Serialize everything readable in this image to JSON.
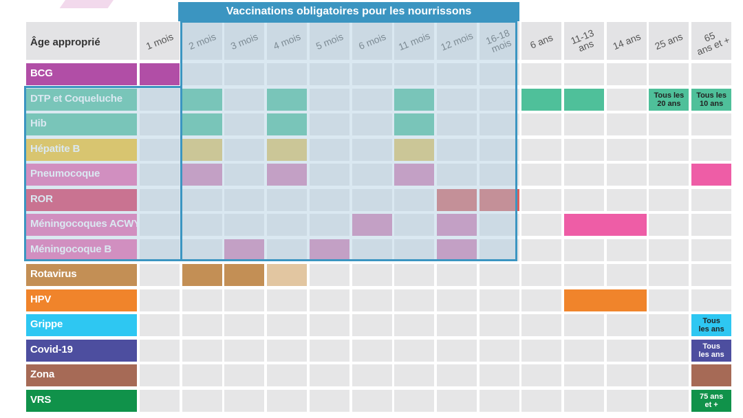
{
  "header_label": "Âge approprié",
  "overlay_title": "Vaccinations obligatoires pour les nourrissons",
  "colors": {
    "teal": "#4fc09a",
    "yellow": "#e3c25c",
    "pink": "#d57db0",
    "red": "#d8605d",
    "hotpink": "#ee5da6",
    "brown": "#c38f55",
    "lightbrown": "#e2c6a1",
    "orange": "#f0842b",
    "zona": "#a66a56",
    "green": "#10924a",
    "purple": "#b14ea6"
  },
  "chart_data": {
    "type": "table",
    "columns": [
      "1 mois",
      "2 mois",
      "3 mois",
      "4 mois",
      "5 mois",
      "6 mois",
      "11 mois",
      "12 mois",
      "16-18 mois",
      "6 ans",
      "11-13 ans",
      "14 ans",
      "25 ans",
      "65 ans et +"
    ],
    "rows": [
      {
        "name": "BCG",
        "color": "#b14ea6",
        "doses": [
          {
            "col": 0,
            "span": 1,
            "color": "#b14ea6",
            "note": ""
          }
        ]
      },
      {
        "name": "DTP et Coqueluche",
        "color": "#4fc09a",
        "doses": [
          {
            "col": 1,
            "span": 1,
            "color": "#4fc09a",
            "note": ""
          },
          {
            "col": 3,
            "span": 1,
            "color": "#4fc09a",
            "note": ""
          },
          {
            "col": 6,
            "span": 1,
            "color": "#4fc09a",
            "note": ""
          },
          {
            "col": 9,
            "span": 1,
            "color": "#4fc09a",
            "note": ""
          },
          {
            "col": 10,
            "span": 1,
            "color": "#4fc09a",
            "note": ""
          },
          {
            "col": 12,
            "span": 1,
            "color": "#4fc09a",
            "note": "Tous les\n20 ans"
          },
          {
            "col": 13,
            "span": 1,
            "color": "#4fc09a",
            "note": "Tous les\n10 ans"
          }
        ]
      },
      {
        "name": "Hib",
        "color": "#4fc09a",
        "doses": [
          {
            "col": 1,
            "span": 1,
            "color": "#4fc09a",
            "note": ""
          },
          {
            "col": 3,
            "span": 1,
            "color": "#4fc09a",
            "note": ""
          },
          {
            "col": 6,
            "span": 1,
            "color": "#4fc09a",
            "note": ""
          }
        ]
      },
      {
        "name": "Hépatite B",
        "color": "#fcc014",
        "doses": [
          {
            "col": 1,
            "span": 1,
            "color": "#e3c25c",
            "note": ""
          },
          {
            "col": 3,
            "span": 1,
            "color": "#e3c25c",
            "note": ""
          },
          {
            "col": 6,
            "span": 1,
            "color": "#e3c25c",
            "note": ""
          }
        ]
      },
      {
        "name": "Pneumocoque",
        "color": "#ee5da6",
        "doses": [
          {
            "col": 1,
            "span": 1,
            "color": "#d57db0",
            "note": ""
          },
          {
            "col": 3,
            "span": 1,
            "color": "#d57db0",
            "note": ""
          },
          {
            "col": 6,
            "span": 1,
            "color": "#d57db0",
            "note": ""
          },
          {
            "col": 13,
            "span": 1,
            "color": "#ee5da6",
            "note": ""
          }
        ]
      },
      {
        "name": "ROR",
        "color": "#e02a50",
        "doses": [
          {
            "col": 7,
            "span": 1,
            "color": "#d8605d",
            "note": ""
          },
          {
            "col": 8,
            "span": 1,
            "color": "#d8605d",
            "note": ""
          }
        ]
      },
      {
        "name": "Méningocoques ACWY",
        "color": "#ee5da6",
        "doses": [
          {
            "col": 5,
            "span": 1,
            "color": "#d57db0",
            "note": ""
          },
          {
            "col": 7,
            "span": 1,
            "color": "#d57db0",
            "note": ""
          },
          {
            "col": 10,
            "span": 2,
            "color": "#ee5da6",
            "note": ""
          }
        ]
      },
      {
        "name": "Méningocoque B",
        "color": "#ee5da6",
        "doses": [
          {
            "col": 2,
            "span": 1,
            "color": "#d57db0",
            "note": ""
          },
          {
            "col": 4,
            "span": 1,
            "color": "#d57db0",
            "note": ""
          },
          {
            "col": 7,
            "span": 1,
            "color": "#d57db0",
            "note": ""
          }
        ]
      },
      {
        "name": "Rotavirus",
        "color": "#c38f55",
        "doses": [
          {
            "col": 1,
            "span": 1,
            "color": "#c38f55",
            "note": ""
          },
          {
            "col": 2,
            "span": 1,
            "color": "#c38f55",
            "note": ""
          },
          {
            "col": 3,
            "span": 1,
            "color": "#e2c6a1",
            "note": ""
          }
        ]
      },
      {
        "name": "HPV",
        "color": "#f0842b",
        "doses": [
          {
            "col": 10,
            "span": 2,
            "color": "#f0842b",
            "note": ""
          }
        ]
      },
      {
        "name": "Grippe",
        "color": "#2ec7f2",
        "doses": [
          {
            "col": 13,
            "span": 1,
            "color": "#2ec7f2",
            "note": "Tous\nles ans"
          }
        ]
      },
      {
        "name": "Covid-19",
        "color": "#4d4e9f",
        "doses": [
          {
            "col": 13,
            "span": 1,
            "color": "#4d4e9f",
            "note": "Tous\nles ans",
            "light": true
          }
        ]
      },
      {
        "name": "Zona",
        "color": "#a66a56",
        "doses": [
          {
            "col": 13,
            "span": 1,
            "color": "#a66a56",
            "note": ""
          }
        ]
      },
      {
        "name": "VRS",
        "color": "#10924a",
        "doses": [
          {
            "col": 13,
            "span": 1,
            "color": "#10924a",
            "note": "75 ans\net +",
            "light": true
          }
        ]
      }
    ]
  }
}
